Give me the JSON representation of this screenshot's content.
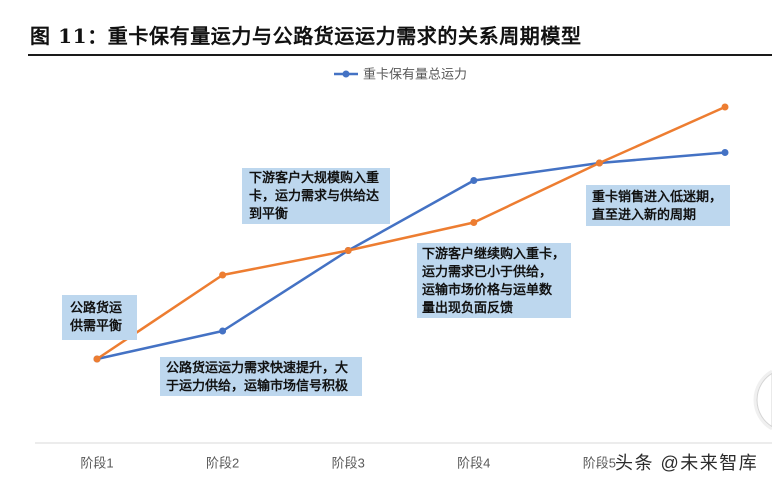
{
  "chart_data": {
    "type": "line",
    "title": "图 11：重卡保有量运力与公路货运运力需求的关系周期模型",
    "xlabel": "",
    "ylabel": "",
    "categories": [
      "阶段1",
      "阶段2",
      "阶段3",
      "阶段4",
      "阶段5",
      ""
    ],
    "series": [
      {
        "name": "重卡保有量总运力",
        "color": "#4472c4",
        "values": [
          24,
          32,
          55,
          75,
          80,
          83
        ]
      },
      {
        "color": "#ed7d31",
        "values": [
          24,
          48,
          55,
          63,
          80,
          96
        ]
      }
    ],
    "ylim": [
      0,
      100
    ],
    "grid": false,
    "legend": "top-center",
    "annotation_color": "#bdd7ee",
    "annotations": [
      {
        "lines": [
          "公路货运",
          "供需平衡"
        ]
      },
      {
        "lines": [
          "公路货运运力需求快速提升，大",
          "于运力供给，运输市场信号积极"
        ]
      },
      {
        "lines": [
          "下游客户大规模购入重",
          "卡，运力需求与供给达",
          "到平衡"
        ]
      },
      {
        "lines": [
          "下游客户继续购入重卡，",
          "运力需求已小于供给，",
          "运输市场价格与运单数",
          "量出现负面反馈"
        ]
      },
      {
        "lines": [
          "重卡销售进入低迷期，",
          "直至进入新的周期"
        ]
      }
    ]
  },
  "watermark": {
    "text": "头条 @未来智库"
  }
}
